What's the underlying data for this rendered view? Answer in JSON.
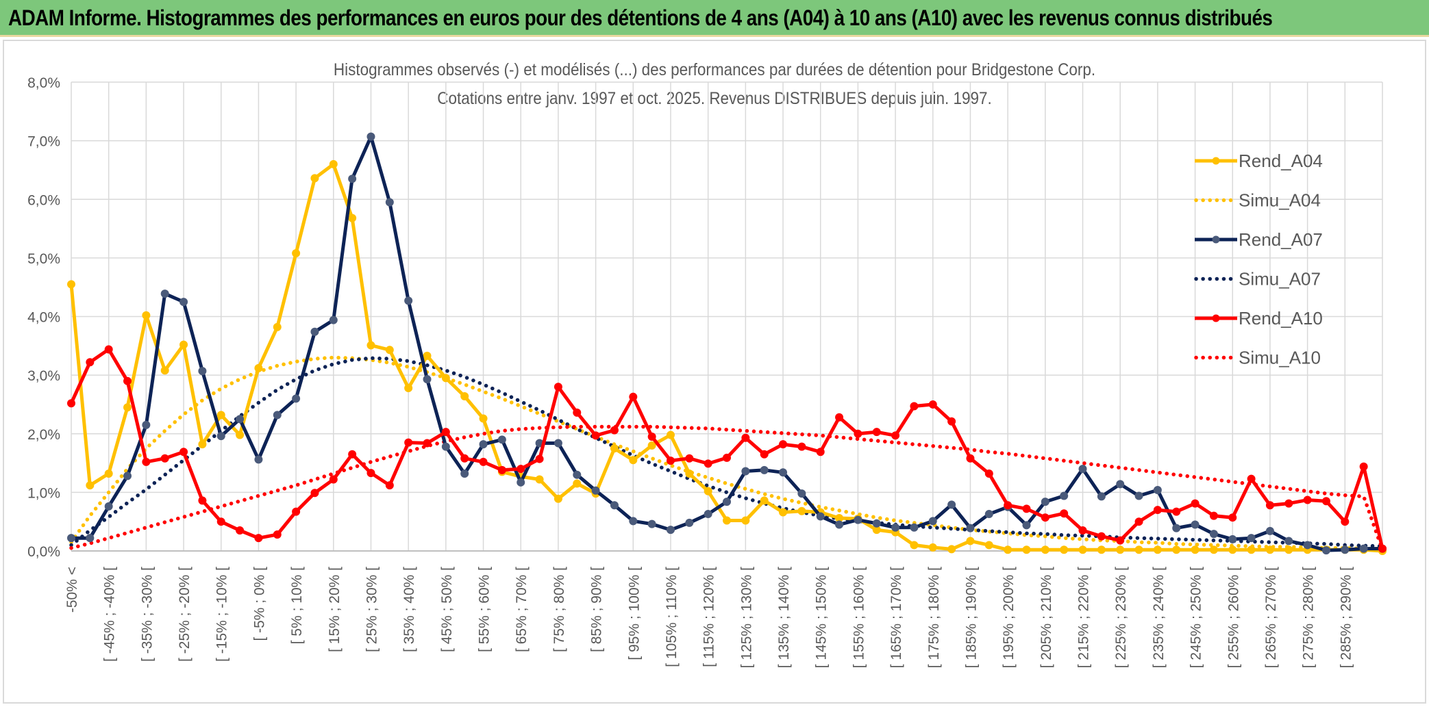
{
  "header": {
    "title": "ADAM Informe. Histogrammes des performances en euros pour des détentions de 4 ans (A04) à 10 ans (A10) avec les revenus connus distribués"
  },
  "colors": {
    "header_bg": "#7dc77b",
    "A04": "#ffc000",
    "A07": "#0d2356",
    "A07_marker": "#4a5a7a",
    "A10": "#ff0000",
    "grid": "#d9d9d9"
  },
  "chart_data": {
    "type": "line",
    "title": "Histogrammes observés (-) et modélisés (...) des performances par durées de détention pour Bridgestone Corp.",
    "subtitle": "Cotations entre janv. 1997 et oct. 2025. Revenus DISTRIBUES depuis juin. 1997.",
    "xlabel": "",
    "ylabel": "",
    "ylim": [
      0,
      8
    ],
    "yticks": [
      "0,0%",
      "1,0%",
      "2,0%",
      "3,0%",
      "4,0%",
      "5,0%",
      "6,0%",
      "7,0%",
      "8,0%"
    ],
    "grid": true,
    "legend_position": "right",
    "categories": [
      "-50% <",
      "[ -50% ; -45% [",
      "[ -45% ; -40% [",
      "[ -40% ; -35% [",
      "[ -35% ; -30% [",
      "[ -30% ; -25% [",
      "[ -25% ; -20% [",
      "[ -20% ; -15% [",
      "[ -15% ; -10% [",
      "[ -10% ; -5% [",
      "[ -5% ; 0% [",
      "[ 0% ; 5% [",
      "[ 5% ; 10% [",
      "[ 10% ; 15% [",
      "[ 15% ; 20% [",
      "[ 20% ; 25% [",
      "[ 25% ; 30% [",
      "[ 30% ; 35% [",
      "[ 35% ; 40% [",
      "[ 40% ; 45% [",
      "[ 45% ; 50% [",
      "[ 50% ; 55% [",
      "[ 55% ; 60% [",
      "[ 60% ; 65% [",
      "[ 65% ; 70% [",
      "[ 70% ; 75% [",
      "[ 75% ; 80% [",
      "[ 80% ; 85% [",
      "[ 85% ; 90% [",
      "[ 90% ; 95% [",
      "[ 95% ; 100% [",
      "[ 100% ; 105% [",
      "[ 105% ; 110% [",
      "[ 110% ; 115% [",
      "[ 115% ; 120% [",
      "[ 120% ; 125% [",
      "[ 125% ; 130% [",
      "[ 130% ; 135% [",
      "[ 135% ; 140% [",
      "[ 140% ; 145% [",
      "[ 145% ; 150% [",
      "[ 150% ; 155% [",
      "[ 155% ; 160% [",
      "[ 160% ; 165% [",
      "[ 165% ; 170% [",
      "[ 170% ; 175% [",
      "[ 175% ; 180% [",
      "[ 180% ; 185% [",
      "[ 185% ; 190% [",
      "[ 190% ; 195% [",
      "[ 195% ; 200% [",
      "[ 200% ; 205% [",
      "[ 205% ; 210% [",
      "[ 210% ; 215% [",
      "[ 215% ; 220% [",
      "[ 220% ; 225% [",
      "[ 225% ; 230% [",
      "[ 230% ; 235% [",
      "[ 235% ; 240% [",
      "[ 240% ; 245% [",
      "[ 245% ; 250% [",
      "[ 250% ; 255% [",
      "[ 255% ; 260% [",
      "[ 260% ; 265% [",
      "[ 265% ; 270% [",
      "[ 270% ; 275% [",
      "[ 275% ; 280% [",
      "[ 280% ; 285% [",
      "[ 285% ; 290% [",
      "[ 290% ; 295% [",
      "[ 295% ; 300% ["
    ],
    "shown_tick_labels": [
      "-50% <",
      "[ -45% ; -40% [",
      "[ -35% ; -30% [",
      "[ -25% ; -20% [",
      "[ -15% ; -10% [",
      "[ -5% ; 0% [",
      "[ 5% ; 10% [",
      "[ 15% ; 20% [",
      "[ 25% ; 30% [",
      "[ 35% ; 40% [",
      "[ 45% ; 50% [",
      "[ 55% ; 60% [",
      "[ 65% ; 70% [",
      "[ 75% ; 80% [",
      "[ 85% ; 90% [",
      "[ 95% ; 100% [",
      "[ 105% ; 110% [",
      "[ 115% ; 120% [",
      "[ 125% ; 130% [",
      "[ 135% ; 140% [",
      "[ 145% ; 150% [",
      "[ 155% ; 160% [",
      "[ 165% ; 170% [",
      "[ 175% ; 180% [",
      "[ 185% ; 190% [",
      "[ 195% ; 200% [",
      "[ 205% ; 210% [",
      "[ 215% ; 220% [",
      "[ 225% ; 230% [",
      "[ 235% ; 240% [",
      "[ 245% ; 250% [",
      "[ 255% ; 260% [",
      "[ 265% ; 270% [",
      "[ 275% ; 280% [",
      "[ 285% ; 290% ["
    ],
    "series": [
      {
        "name": "Rend_A04",
        "kind": "observed",
        "color": "#ffc000",
        "values": [
          4.55,
          1.12,
          1.32,
          2.45,
          4.02,
          3.08,
          3.52,
          1.82,
          2.32,
          1.98,
          3.12,
          3.82,
          5.08,
          6.36,
          6.6,
          5.68,
          3.51,
          3.43,
          2.78,
          3.33,
          2.95,
          2.64,
          2.26,
          1.35,
          1.27,
          1.22,
          0.89,
          1.15,
          0.98,
          1.75,
          1.55,
          1.8,
          1.98,
          1.32,
          1.02,
          0.52,
          0.52,
          0.86,
          0.66,
          0.68,
          0.66,
          0.56,
          0.55,
          0.36,
          0.32,
          0.1,
          0.06,
          0.03,
          0.17,
          0.1,
          0.02,
          0.02,
          0.02,
          0.02,
          0.02,
          0.02,
          0.02,
          0.02,
          0.02,
          0.02,
          0.02,
          0.02,
          0.02,
          0.02,
          0.02,
          0.02,
          0.02,
          0.02,
          0.02,
          0.02,
          0.0
        ]
      },
      {
        "name": "Simu_A04",
        "kind": "modelled",
        "color": "#ffc000",
        "values": [
          0.15,
          0.6,
          1.0,
          1.4,
          1.75,
          2.05,
          2.33,
          2.57,
          2.77,
          2.93,
          3.06,
          3.16,
          3.23,
          3.28,
          3.3,
          3.29,
          3.26,
          3.21,
          3.14,
          3.05,
          2.95,
          2.84,
          2.72,
          2.6,
          2.47,
          2.34,
          2.21,
          2.08,
          1.95,
          1.82,
          1.7,
          1.58,
          1.46,
          1.35,
          1.25,
          1.15,
          1.06,
          0.97,
          0.89,
          0.82,
          0.75,
          0.69,
          0.63,
          0.57,
          0.52,
          0.48,
          0.44,
          0.4,
          0.36,
          0.33,
          0.3,
          0.27,
          0.25,
          0.22,
          0.2,
          0.18,
          0.17,
          0.15,
          0.14,
          0.12,
          0.11,
          0.1,
          0.09,
          0.08,
          0.07,
          0.07,
          0.06,
          0.05,
          0.05,
          0.04,
          0.04
        ]
      },
      {
        "name": "Rend_A07",
        "kind": "observed",
        "color": "#0d2356",
        "values": [
          0.22,
          0.22,
          0.76,
          1.28,
          2.15,
          4.39,
          4.25,
          3.07,
          1.96,
          2.25,
          1.56,
          2.32,
          2.6,
          3.74,
          3.94,
          6.35,
          7.07,
          5.95,
          4.27,
          2.93,
          1.78,
          1.32,
          1.82,
          1.9,
          1.17,
          1.84,
          1.84,
          1.3,
          1.03,
          0.78,
          0.51,
          0.46,
          0.36,
          0.48,
          0.63,
          0.84,
          1.36,
          1.38,
          1.34,
          0.98,
          0.59,
          0.45,
          0.53,
          0.47,
          0.4,
          0.4,
          0.51,
          0.79,
          0.39,
          0.63,
          0.75,
          0.44,
          0.84,
          0.94,
          1.4,
          0.93,
          1.14,
          0.94,
          1.04,
          0.39,
          0.45,
          0.29,
          0.2,
          0.22,
          0.34,
          0.17,
          0.1,
          0.01,
          0.02,
          0.04,
          0.04
        ]
      },
      {
        "name": "Simu_A07",
        "kind": "modelled",
        "color": "#0d2356",
        "values": [
          0.1,
          0.35,
          0.58,
          0.82,
          1.05,
          1.3,
          1.55,
          1.8,
          2.05,
          2.3,
          2.53,
          2.75,
          2.93,
          3.08,
          3.19,
          3.26,
          3.29,
          3.28,
          3.24,
          3.17,
          3.08,
          2.97,
          2.84,
          2.7,
          2.55,
          2.4,
          2.24,
          2.08,
          1.93,
          1.78,
          1.63,
          1.49,
          1.36,
          1.23,
          1.11,
          1.0,
          0.9,
          0.81,
          0.73,
          0.66,
          0.6,
          0.55,
          0.51,
          0.48,
          0.45,
          0.42,
          0.4,
          0.38,
          0.36,
          0.34,
          0.32,
          0.3,
          0.29,
          0.27,
          0.26,
          0.25,
          0.23,
          0.22,
          0.21,
          0.2,
          0.19,
          0.18,
          0.17,
          0.16,
          0.15,
          0.14,
          0.13,
          0.12,
          0.1,
          0.09,
          0.08
        ]
      },
      {
        "name": "Rend_A10",
        "kind": "observed",
        "color": "#ff0000",
        "values": [
          2.52,
          3.22,
          3.44,
          2.9,
          1.52,
          1.58,
          1.69,
          0.86,
          0.5,
          0.35,
          0.22,
          0.28,
          0.67,
          0.99,
          1.22,
          1.65,
          1.33,
          1.12,
          1.85,
          1.84,
          2.03,
          1.58,
          1.52,
          1.38,
          1.4,
          1.57,
          2.8,
          2.36,
          1.97,
          2.06,
          2.63,
          1.95,
          1.54,
          1.58,
          1.49,
          1.59,
          1.93,
          1.65,
          1.82,
          1.78,
          1.69,
          2.28,
          2.0,
          2.03,
          1.97,
          2.47,
          2.5,
          2.21,
          1.58,
          1.32,
          0.78,
          0.72,
          0.57,
          0.64,
          0.35,
          0.25,
          0.18,
          0.5,
          0.7,
          0.67,
          0.81,
          0.6,
          0.57,
          1.23,
          0.78,
          0.81,
          0.87,
          0.85,
          0.5,
          1.44,
          0.04
        ]
      },
      {
        "name": "Simu_A10",
        "kind": "modelled",
        "color": "#ff0000",
        "values": [
          0.05,
          0.13,
          0.22,
          0.31,
          0.4,
          0.49,
          0.58,
          0.67,
          0.76,
          0.85,
          0.94,
          1.03,
          1.12,
          1.22,
          1.32,
          1.42,
          1.52,
          1.61,
          1.7,
          1.79,
          1.87,
          1.94,
          2.0,
          2.05,
          2.08,
          2.1,
          2.11,
          2.12,
          2.12,
          2.12,
          2.12,
          2.12,
          2.11,
          2.1,
          2.09,
          2.07,
          2.05,
          2.03,
          2.01,
          1.99,
          1.97,
          1.94,
          1.91,
          1.88,
          1.85,
          1.82,
          1.79,
          1.76,
          1.73,
          1.69,
          1.66,
          1.62,
          1.58,
          1.54,
          1.5,
          1.46,
          1.42,
          1.38,
          1.34,
          1.3,
          1.26,
          1.22,
          1.18,
          1.14,
          1.1,
          1.06,
          1.02,
          0.98,
          0.95,
          0.93,
          0.02
        ]
      }
    ]
  }
}
